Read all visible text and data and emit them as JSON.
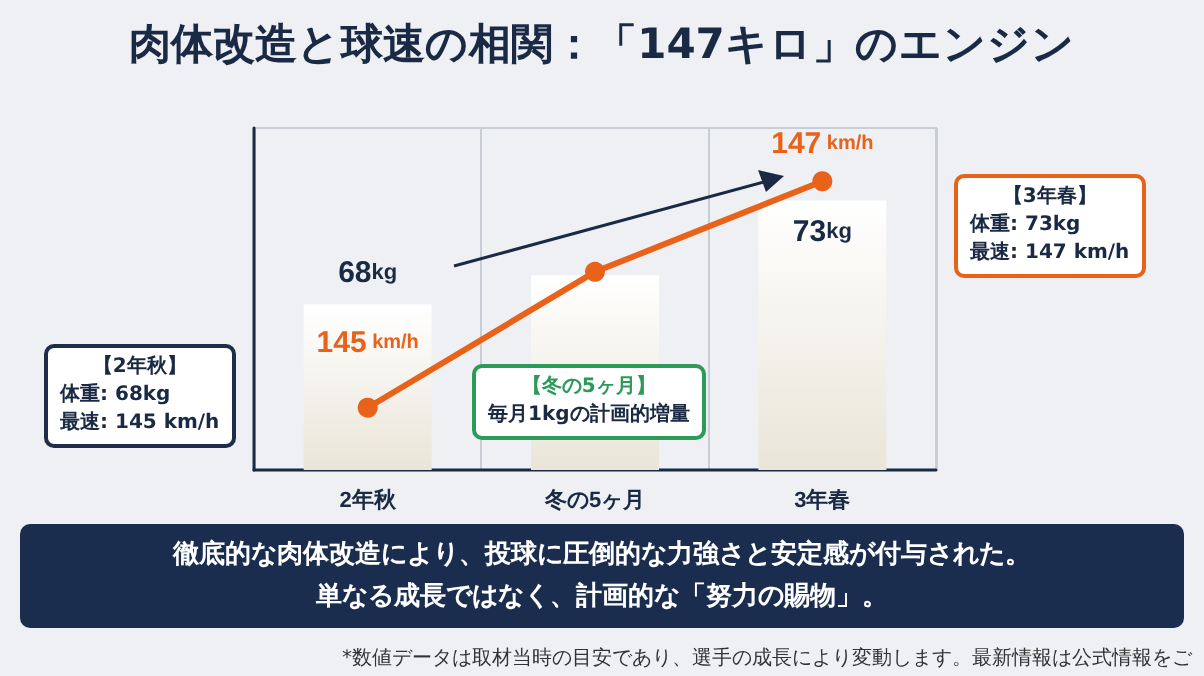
{
  "chart_data": {
    "type": "bar",
    "title": "肉体改造と球速の相関：「147キロ」のエンジン",
    "categories": [
      "2年秋",
      "冬の5ヶ月",
      "3年春"
    ],
    "series": [
      {
        "color": "#e9e5d8",
        "values": [
          68,
          69.4,
          73
        ],
        "value_labels": [
          "68kg",
          null,
          "73kg"
        ]
      },
      {
        "type": "line",
        "axis": "y2",
        "color": "#e8621a",
        "values": [
          145,
          146.2,
          147
        ],
        "value_labels": [
          "145 km/h",
          null,
          "147 km/h"
        ]
      }
    ],
    "ylim": [
      60,
      76.5
    ],
    "y2lim": [
      144.45,
      147.47
    ],
    "tick_labels": "x",
    "grid": "x",
    "marker": "circle",
    "line_style": "solid",
    "annotations": [
      "【2年秋】",
      "体重: 68kg",
      "最速: 145 km/h",
      "【冬の5ヶ月】",
      "毎月1kgの計画的増量",
      "【3年春】",
      "体重: 73kg",
      "最速: 147 km/h",
      "徹底的な肉体改造により、投球に圧倒的な力強さと安定感が付与された。",
      "単なる成長ではなく、計画的な「努力の賜物」。",
      "*数値データは取材当時の目安であり、選手の成長により変動します。最新情報は公式情報をご"
    ]
  }
}
